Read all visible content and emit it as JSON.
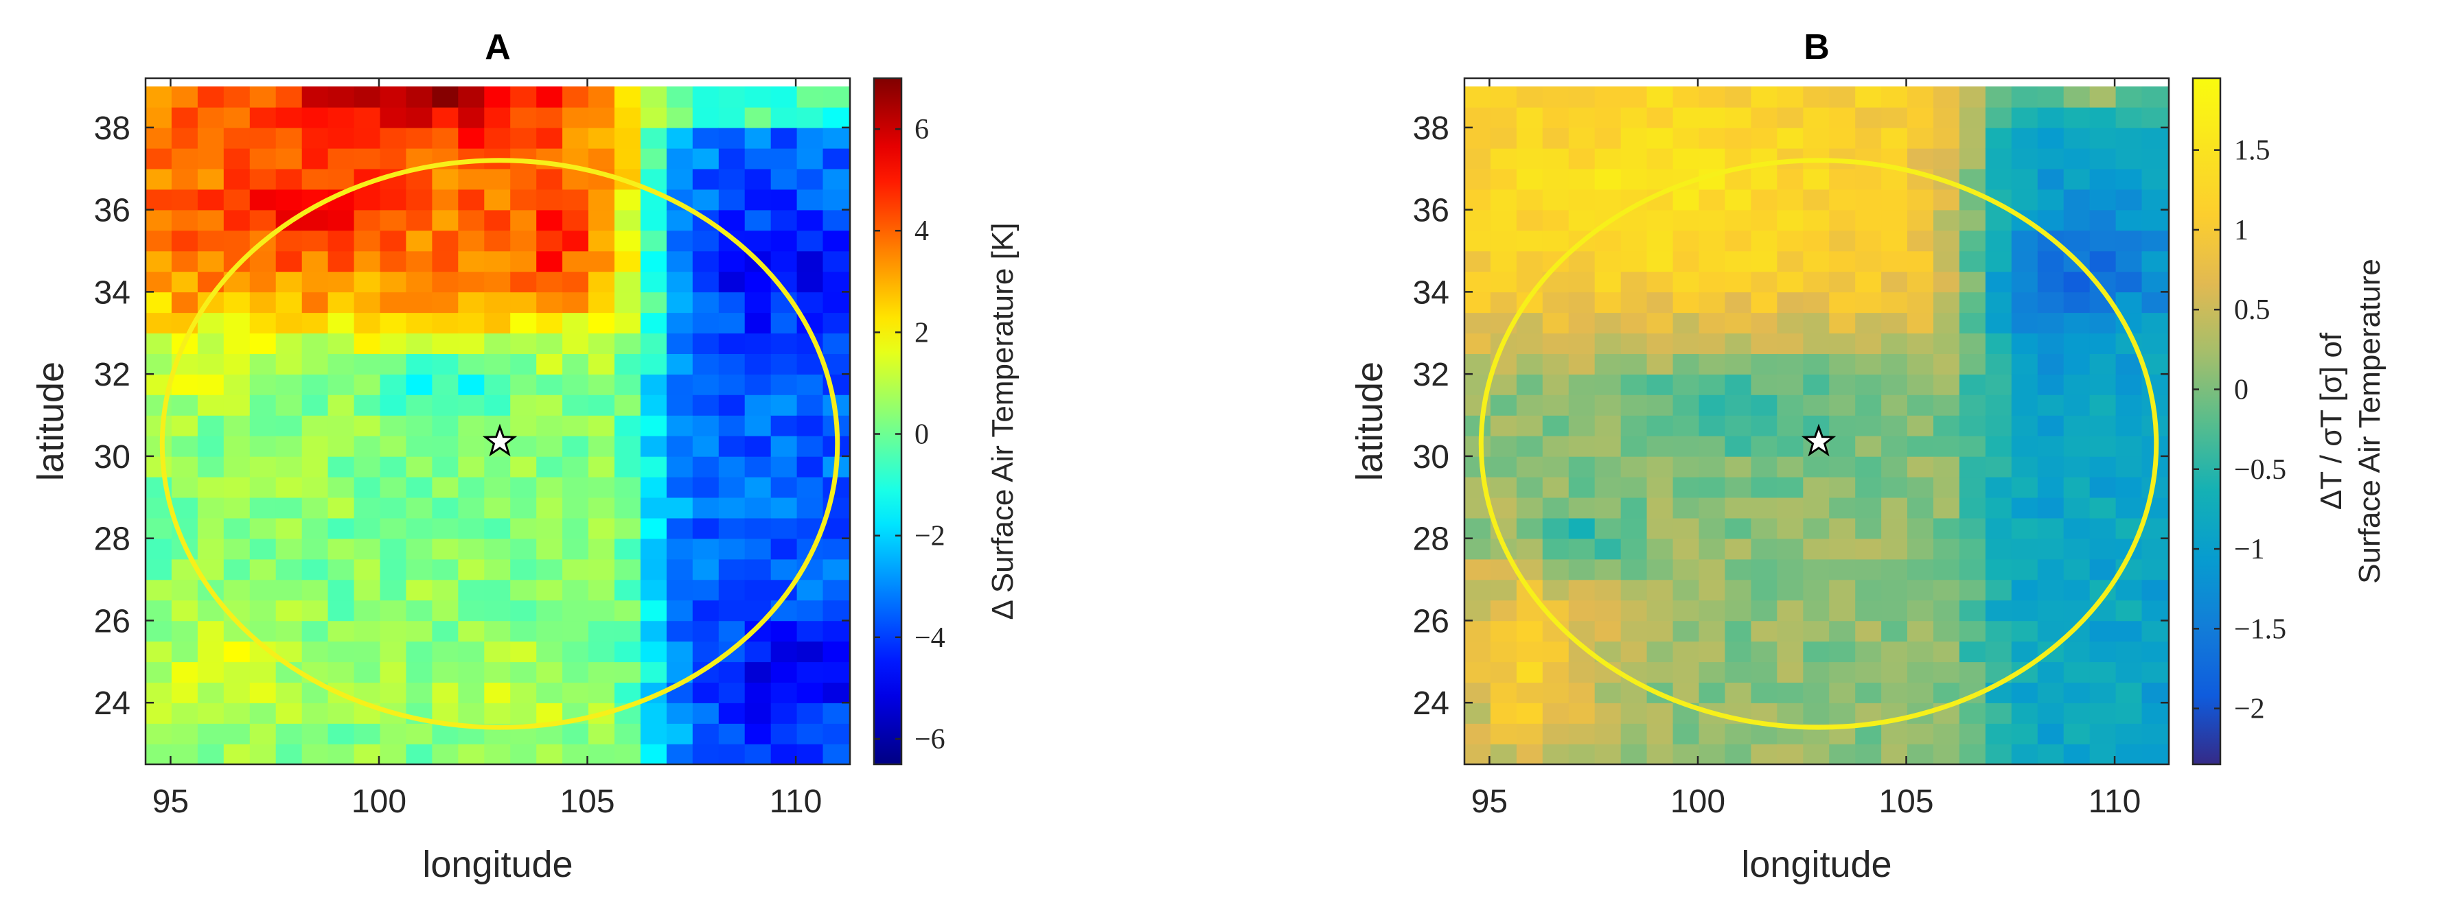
{
  "chart_data": [
    {
      "type": "heatmap",
      "title": "A",
      "xlabel": "longitude",
      "ylabel": "latitude",
      "xlim": [
        94.4,
        111.3
      ],
      "ylim": [
        22.5,
        39.2
      ],
      "xticks": [
        95,
        100,
        105,
        110
      ],
      "yticks": [
        24,
        26,
        28,
        30,
        32,
        34,
        36,
        38
      ],
      "colormap": "jet",
      "colorbar": {
        "label": "Δ Surface Air Temperature [K]",
        "range": [
          -6.5,
          7.0
        ],
        "ticks": [
          -6,
          -4,
          -2,
          0,
          2,
          4,
          6
        ],
        "tick_labels": [
          "−6",
          "−4",
          "−2",
          "0",
          "2",
          "4",
          "6"
        ]
      },
      "grid": {
        "lon_start": 94.4,
        "lon_step": 0.625,
        "lat_start": 22.5,
        "lat_step": 0.5,
        "ncols": 27,
        "nrows": 33
      },
      "field_description": "Estimated gridded anomaly: warm (+2 to +6.5 K) north of ~33°N and west of ~106°E, peak ~+6.5 K near 101°E 38.8°N; cold (−3 to −6 K) east of ~106.5°E; near-neutral (−1 to +1.5 K) elsewhere, weak cool patch near 101.5°E 31.8°N.",
      "circle": {
        "center_lon": 102.9,
        "center_lat": 30.3,
        "radius_lon": 8.1,
        "radius_lat": 6.9,
        "color": "#F7F01A"
      },
      "marker": {
        "lon": 102.9,
        "lat": 30.35,
        "symbol": "star"
      }
    },
    {
      "type": "heatmap",
      "title": "B",
      "xlabel": "longitude",
      "ylabel": "latitude",
      "xlim": [
        94.4,
        111.3
      ],
      "ylim": [
        22.5,
        39.2
      ],
      "xticks": [
        95,
        100,
        105,
        110
      ],
      "yticks": [
        24,
        26,
        28,
        30,
        32,
        34,
        36,
        38
      ],
      "colormap": "parula",
      "colorbar": {
        "label_line1": "ΔT / σT [σ] of",
        "label_line2": "Surface Air Temperature",
        "range": [
          -2.35,
          1.95
        ],
        "ticks": [
          -2,
          -1.5,
          -1,
          -0.5,
          0,
          0.5,
          1,
          1.5
        ],
        "tick_labels": [
          "−2",
          "−1.5",
          "−1",
          "−0.5",
          "0",
          "0.5",
          "1",
          "1.5"
        ]
      },
      "grid": {
        "lon_start": 94.4,
        "lon_step": 0.625,
        "lat_start": 22.5,
        "lat_step": 0.5,
        "ncols": 27,
        "nrows": 33
      },
      "field_description": "Standardized anomaly: +0.8 to +1.6σ across the north-west above ~33°N and in the south-west corner; −1 to −2.2σ east of ~107°E; around −0.5 to +0.5σ in the centre.",
      "circle": {
        "center_lon": 102.9,
        "center_lat": 30.3,
        "radius_lon": 8.1,
        "radius_lat": 6.9,
        "color": "#F7F01A"
      },
      "marker": {
        "lon": 102.9,
        "lat": 30.35,
        "symbol": "star"
      }
    }
  ]
}
